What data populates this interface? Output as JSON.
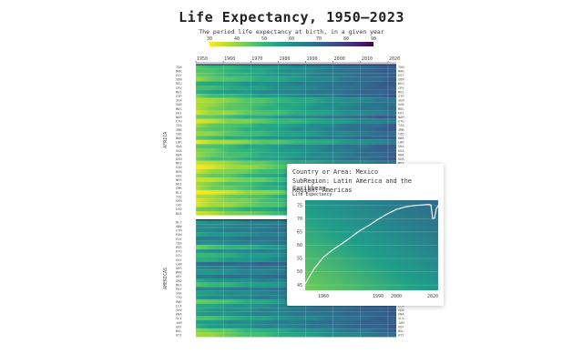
{
  "title": "Life Expectancy, 1950–2023",
  "subtitle": "The period life expectancy at birth, in a given year",
  "colorbar": {
    "ticks": [
      "30",
      "40",
      "50",
      "60",
      "70",
      "80",
      "90"
    ],
    "range": [
      30,
      90
    ],
    "colors": [
      "#fde725",
      "#b5de2b",
      "#6ece58",
      "#35b779",
      "#1f9e89",
      "#26828e",
      "#31688e",
      "#3e4989",
      "#482878",
      "#440154"
    ]
  },
  "chart_data": {
    "type": "heatmap",
    "x_ticks": [
      "1950",
      "1960",
      "1970",
      "1980",
      "1990",
      "2000",
      "2010",
      "2020"
    ],
    "x_range": [
      1950,
      2023
    ],
    "regions": [
      {
        "name": "AFRICA",
        "rows": [
          {
            "label": "TUN",
            "base": 46
          },
          {
            "label": "MAR",
            "base": 45
          },
          {
            "label": "EGY",
            "base": 44
          },
          {
            "label": "SDN",
            "base": 40
          },
          {
            "label": "REU",
            "base": 52
          },
          {
            "label": "CPV",
            "base": 47
          },
          {
            "label": "MUS",
            "base": 53
          },
          {
            "label": "STP",
            "base": 44
          },
          {
            "label": "SEN",
            "base": 35
          },
          {
            "label": "GAB",
            "base": 37
          },
          {
            "label": "MDG",
            "base": 38
          },
          {
            "label": "ERI",
            "base": 34
          },
          {
            "label": "NAM",
            "base": 42
          },
          {
            "label": "ETH",
            "base": 33
          },
          {
            "label": "TZA",
            "base": 40
          },
          {
            "label": "ZMB",
            "base": 42
          },
          {
            "label": "COD",
            "base": 38
          },
          {
            "label": "BWA",
            "base": 46
          },
          {
            "label": "LBR",
            "base": 32
          },
          {
            "label": "GHA",
            "base": 44
          },
          {
            "label": "UGA",
            "base": 41
          },
          {
            "label": "RWA",
            "base": 40
          },
          {
            "label": "KEN",
            "base": 43
          },
          {
            "label": "MOZ",
            "base": 33
          },
          {
            "label": "GIN",
            "base": 30
          },
          {
            "label": "BEN",
            "base": 35
          },
          {
            "label": "COG",
            "base": 40
          },
          {
            "label": "NER",
            "base": 33
          },
          {
            "label": "BDI",
            "base": 39
          },
          {
            "label": "CMR",
            "base": 38
          },
          {
            "label": "MLI",
            "base": 28
          },
          {
            "label": "TCD",
            "base": 36
          },
          {
            "label": "SOM",
            "base": 34
          },
          {
            "label": "CAF",
            "base": 33
          },
          {
            "label": "LSO",
            "base": 42
          },
          {
            "label": "NGA",
            "base": 34
          }
        ]
      },
      {
        "name": "AMERICAS",
        "rows": [
          {
            "label": "BLZ",
            "base": 58
          },
          {
            "label": "ABW",
            "base": 59
          },
          {
            "label": "CYM",
            "base": 62
          },
          {
            "label": "PAN",
            "base": 55
          },
          {
            "label": "FLK",
            "base": 63
          },
          {
            "label": "CUB",
            "base": 59
          },
          {
            "label": "PER",
            "base": 44
          },
          {
            "label": "ATG",
            "base": 57
          },
          {
            "label": "ECU",
            "base": 48
          },
          {
            "label": "GUY",
            "base": 52
          },
          {
            "label": "CAN",
            "base": 68
          },
          {
            "label": "ARG",
            "base": 61
          },
          {
            "label": "BRB",
            "base": 57
          },
          {
            "label": "URY",
            "base": 66
          },
          {
            "label": "GRD",
            "base": 55
          },
          {
            "label": "MEX",
            "base": 46
          },
          {
            "label": "PRY",
            "base": 62
          },
          {
            "label": "SUR",
            "base": 56
          },
          {
            "label": "TTO",
            "base": 58
          },
          {
            "label": "HND",
            "base": 42
          },
          {
            "label": "LCA",
            "base": 53
          },
          {
            "label": "VEN",
            "base": 55
          },
          {
            "label": "KNA",
            "base": 56
          },
          {
            "label": "SLV",
            "base": 45
          },
          {
            "label": "JAM",
            "base": 56
          },
          {
            "label": "GUF",
            "base": 53
          },
          {
            "label": "BOL",
            "base": 40
          },
          {
            "label": "HTI",
            "base": 37
          }
        ]
      }
    ],
    "tooltip_series": {
      "country": "Mexico",
      "x": [
        1950,
        1955,
        1960,
        1965,
        1970,
        1975,
        1980,
        1985,
        1990,
        1995,
        2000,
        2005,
        2010,
        2015,
        2018,
        2019,
        2020,
        2021,
        2022,
        2023
      ],
      "y": [
        45.4,
        51.2,
        55.5,
        58.2,
        60.5,
        63.0,
        65.5,
        67.5,
        69.8,
        71.8,
        73.5,
        74.5,
        75.0,
        75.3,
        75.4,
        75.2,
        70.1,
        70.2,
        73.8,
        75.0
      ]
    }
  },
  "tooltip": {
    "country_line": "Country or Area: Mexico",
    "subregion_line": "SubRegion: Latin America and the Caribbean",
    "region_line": "Region: Americas",
    "inset_title": "Life Expectancy",
    "y_ticks": [
      "45",
      "50",
      "55",
      "60",
      "65",
      "70",
      "75"
    ],
    "y_range": [
      43,
      77
    ],
    "x_ticks": [
      "1960",
      "1990",
      "2000",
      "2020"
    ],
    "x_range": [
      1950,
      2023
    ]
  }
}
